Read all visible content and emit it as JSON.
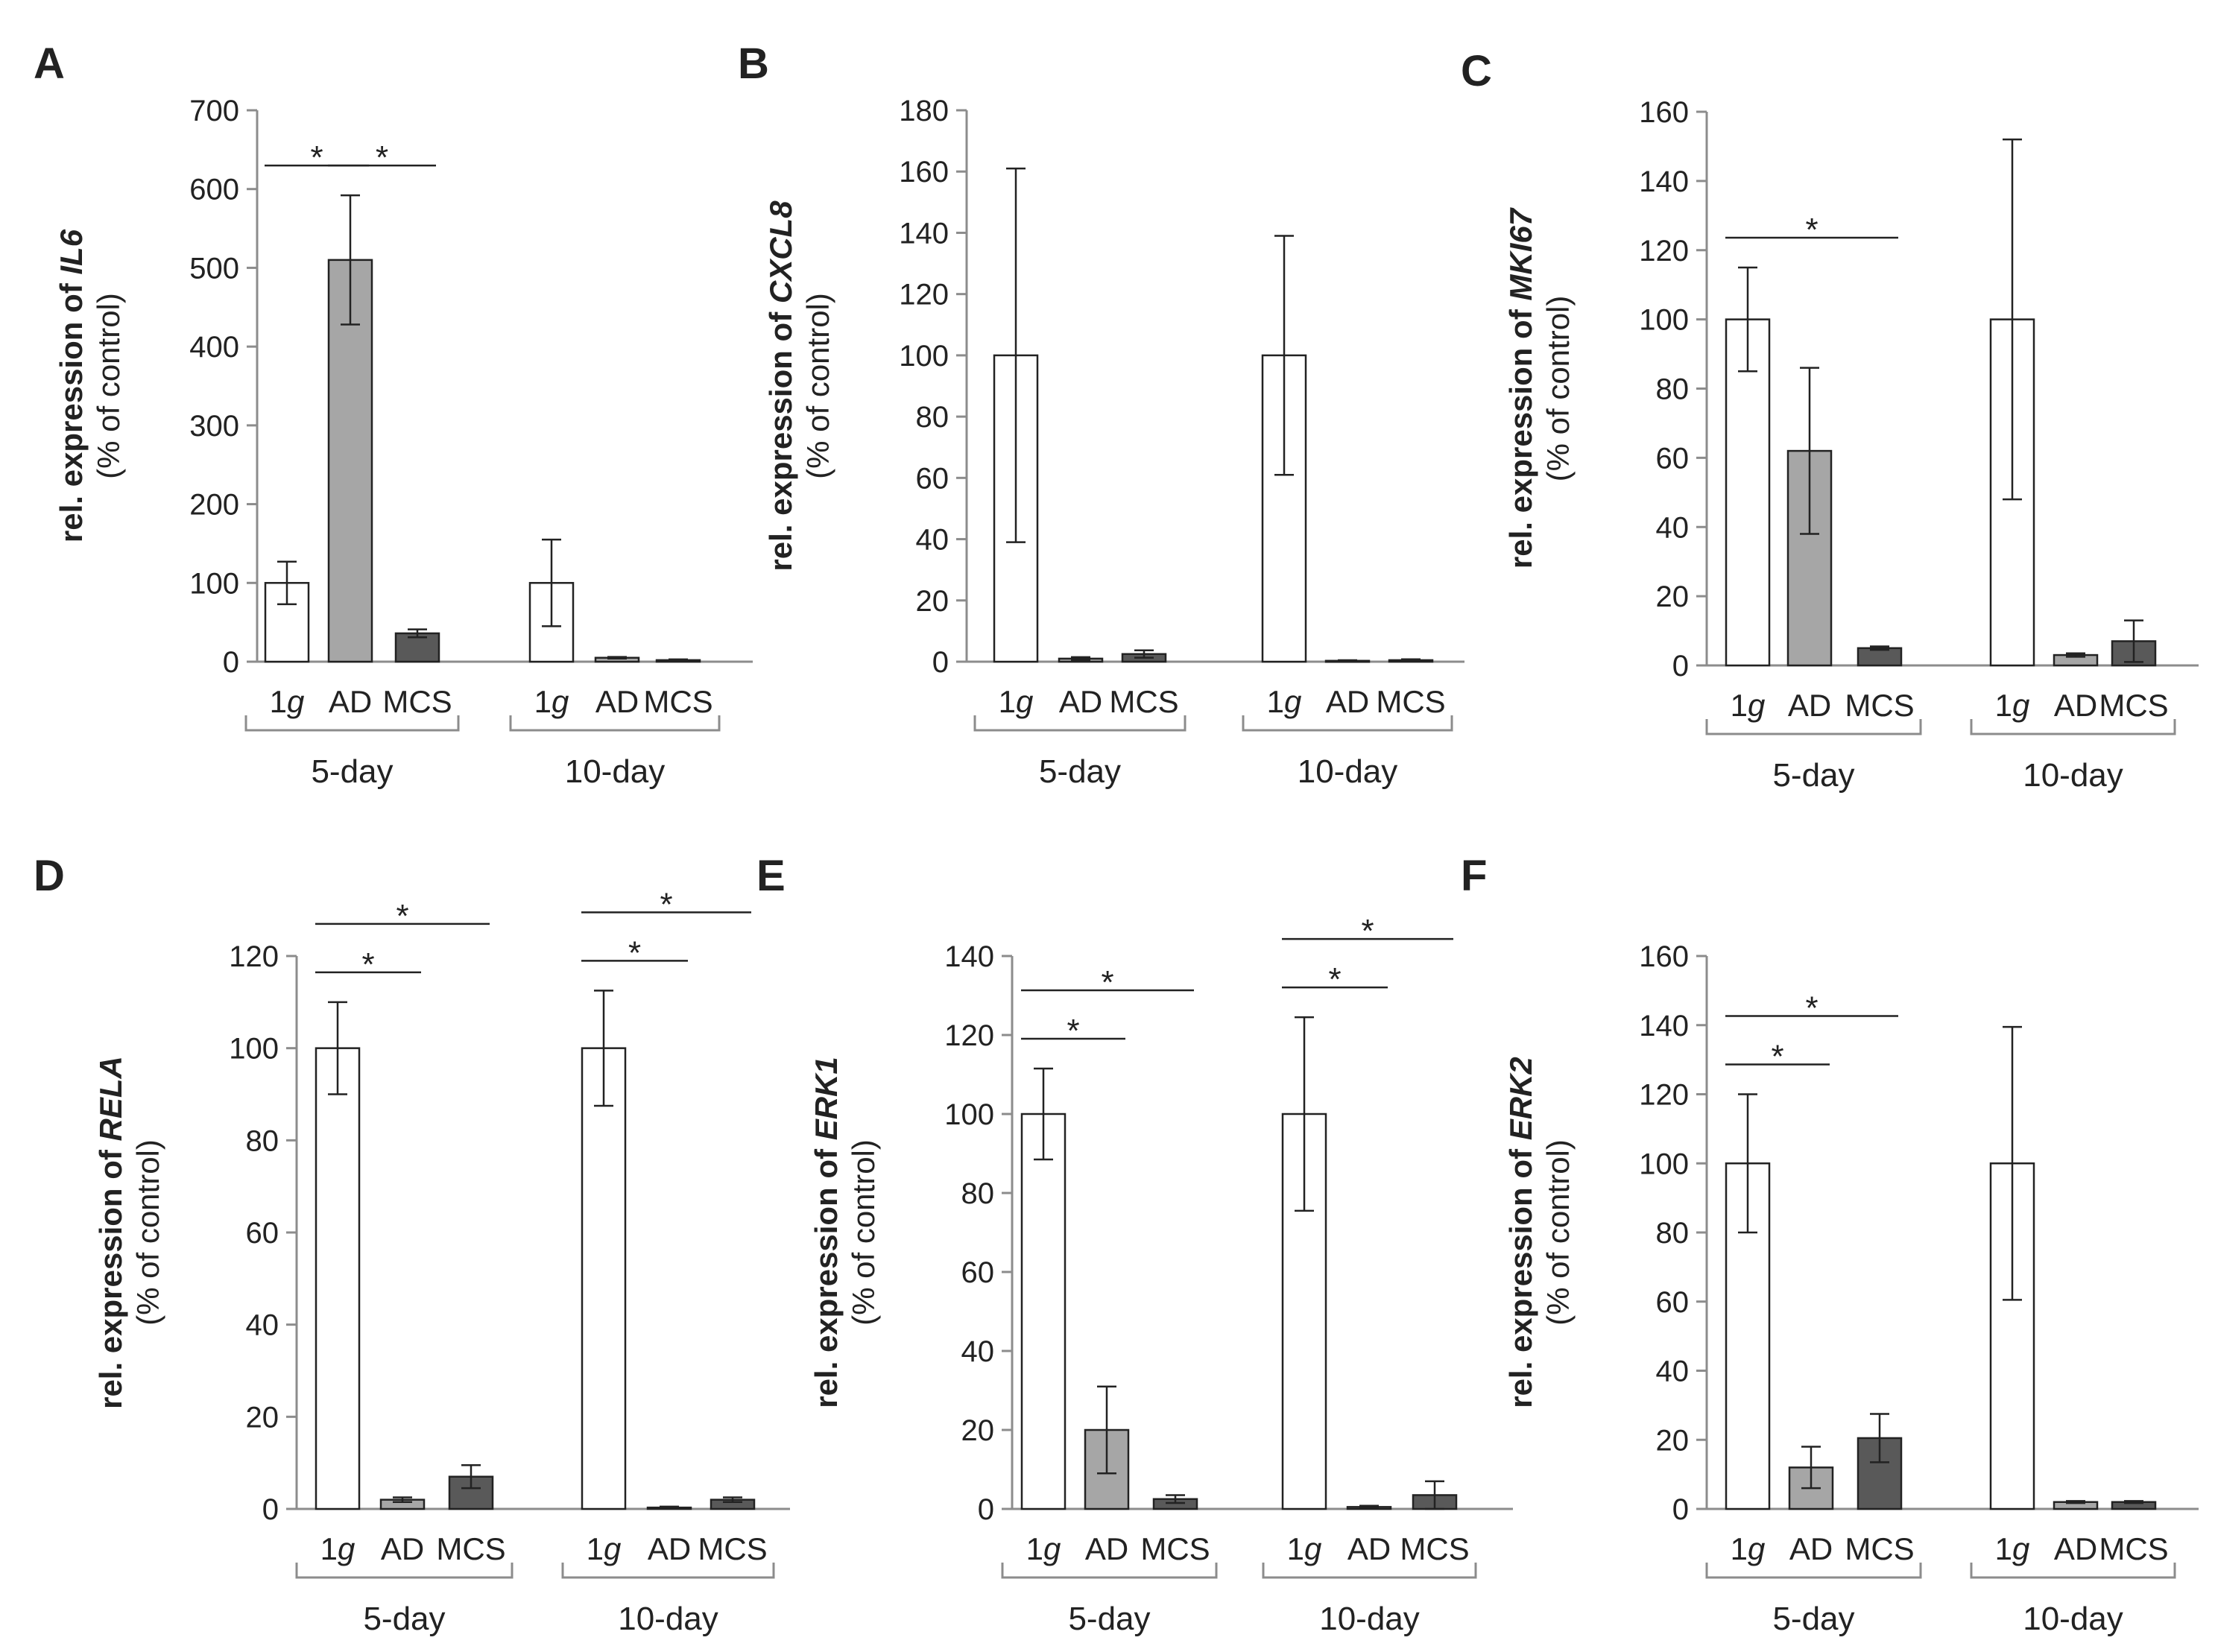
{
  "chart_data": [
    {
      "panel": "A",
      "type": "bar",
      "gene": "IL6",
      "ylim": [
        0,
        700
      ],
      "yticks": [
        0,
        100,
        200,
        300,
        400,
        500,
        600,
        700
      ],
      "ylabel_prefix": "rel. expression of ",
      "ylabel_sub": "(% of control)",
      "groups": [
        "5-day",
        "10-day"
      ],
      "categories": [
        "1g",
        "AD",
        "MCS"
      ],
      "series": [
        {
          "group": "5-day",
          "values": [
            100,
            510,
            36
          ],
          "errors": [
            27,
            82,
            5
          ]
        },
        {
          "group": "10-day",
          "values": [
            100,
            5,
            2
          ],
          "errors": [
            55,
            1,
            1
          ]
        }
      ],
      "significance": [
        {
          "group": "5-day",
          "from": 0,
          "to": 1,
          "level": 1,
          "mark": "*"
        },
        {
          "group": "5-day",
          "from": 1,
          "to": 2,
          "level": 1,
          "mark": "*"
        }
      ]
    },
    {
      "panel": "B",
      "type": "bar",
      "gene": "CXCL8",
      "ylim": [
        0,
        180
      ],
      "yticks": [
        0,
        20,
        40,
        60,
        80,
        100,
        120,
        140,
        160,
        180
      ],
      "ylabel_prefix": "rel. expression of ",
      "ylabel_sub": "(% of control)",
      "groups": [
        "5-day",
        "10-day"
      ],
      "categories": [
        "1g",
        "AD",
        "MCS"
      ],
      "series": [
        {
          "group": "5-day",
          "values": [
            100,
            1,
            2.5
          ],
          "errors": [
            61,
            0.5,
            1.2
          ]
        },
        {
          "group": "10-day",
          "values": [
            100,
            0.3,
            0.5
          ],
          "errors": [
            39,
            0.2,
            0.3
          ]
        }
      ],
      "significance": []
    },
    {
      "panel": "C",
      "type": "bar",
      "gene": "MKI67",
      "ylim": [
        0,
        160
      ],
      "yticks": [
        0,
        20,
        40,
        60,
        80,
        100,
        120,
        140,
        160
      ],
      "ylabel_prefix": "rel. expression of ",
      "ylabel_sub": "(% of control)",
      "groups": [
        "5-day",
        "10-day"
      ],
      "categories": [
        "1g",
        "AD",
        "MCS"
      ],
      "series": [
        {
          "group": "5-day",
          "values": [
            100,
            62,
            5
          ],
          "errors": [
            15,
            24,
            0.5
          ]
        },
        {
          "group": "10-day",
          "values": [
            100,
            3,
            7
          ],
          "errors": [
            52,
            0.5,
            6
          ]
        }
      ],
      "significance": [
        {
          "group": "5-day",
          "from": 0,
          "to": 2,
          "level": 1,
          "mark": "*"
        }
      ]
    },
    {
      "panel": "D",
      "type": "bar",
      "gene": "RELA",
      "ylim": [
        0,
        120
      ],
      "yticks": [
        0,
        20,
        40,
        60,
        80,
        100,
        120
      ],
      "ylabel_prefix": "rel. expression of ",
      "ylabel_sub": "(% of control)",
      "groups": [
        "5-day",
        "10-day"
      ],
      "categories": [
        "1g",
        "AD",
        "MCS"
      ],
      "series": [
        {
          "group": "5-day",
          "values": [
            100,
            2,
            7
          ],
          "errors": [
            10,
            0.5,
            2.5
          ]
        },
        {
          "group": "10-day",
          "values": [
            100,
            0.3,
            2
          ],
          "errors": [
            12.5,
            0.2,
            0.5
          ]
        }
      ],
      "significance": [
        {
          "group": "5-day",
          "from": 0,
          "to": 1,
          "level": 1,
          "mark": "*"
        },
        {
          "group": "5-day",
          "from": 0,
          "to": 2,
          "level": 2,
          "mark": "*"
        },
        {
          "group": "10-day",
          "from": 0,
          "to": 1,
          "level": 1,
          "mark": "*"
        },
        {
          "group": "10-day",
          "from": 0,
          "to": 2,
          "level": 2,
          "mark": "*"
        }
      ]
    },
    {
      "panel": "E",
      "type": "bar",
      "gene": "ERK1",
      "ylim": [
        0,
        140
      ],
      "yticks": [
        0,
        20,
        40,
        60,
        80,
        100,
        120,
        140
      ],
      "ylabel_prefix": "rel. expression of ",
      "ylabel_sub": "(% of control)",
      "groups": [
        "5-day",
        "10-day"
      ],
      "categories": [
        "1g",
        "AD",
        "MCS"
      ],
      "series": [
        {
          "group": "5-day",
          "values": [
            100,
            20,
            2.5
          ],
          "errors": [
            11.5,
            11,
            1
          ]
        },
        {
          "group": "10-day",
          "values": [
            100,
            0.5,
            3.5
          ],
          "errors": [
            24.5,
            0.3,
            3.5
          ]
        }
      ],
      "significance": [
        {
          "group": "5-day",
          "from": 0,
          "to": 1,
          "level": 1,
          "mark": "*"
        },
        {
          "group": "5-day",
          "from": 0,
          "to": 2,
          "level": 2,
          "mark": "*"
        },
        {
          "group": "10-day",
          "from": 0,
          "to": 1,
          "level": 1,
          "mark": "*"
        },
        {
          "group": "10-day",
          "from": 0,
          "to": 2,
          "level": 2,
          "mark": "*"
        }
      ]
    },
    {
      "panel": "F",
      "type": "bar",
      "gene": "ERK2",
      "ylim": [
        0,
        160
      ],
      "yticks": [
        0,
        20,
        40,
        60,
        80,
        100,
        120,
        140,
        160
      ],
      "ylabel_prefix": "rel. expression of ",
      "ylabel_sub": "(% of control)",
      "groups": [
        "5-day",
        "10-day"
      ],
      "categories": [
        "1g",
        "AD",
        "MCS"
      ],
      "series": [
        {
          "group": "5-day",
          "values": [
            100,
            12,
            20.5
          ],
          "errors": [
            20,
            6,
            7
          ]
        },
        {
          "group": "10-day",
          "values": [
            100,
            2,
            2
          ],
          "errors": [
            39.5,
            0.3,
            0.3
          ]
        }
      ],
      "significance": [
        {
          "group": "5-day",
          "from": 0,
          "to": 1,
          "level": 1,
          "mark": "*"
        },
        {
          "group": "5-day",
          "from": 0,
          "to": 2,
          "level": 2,
          "mark": "*"
        }
      ]
    }
  ],
  "colors": {
    "bar_1g": "#ffffff",
    "bar_AD": "#a6a6a6",
    "bar_MCS": "#595959",
    "stroke": "#222222",
    "axis": "#8c8c8c"
  }
}
